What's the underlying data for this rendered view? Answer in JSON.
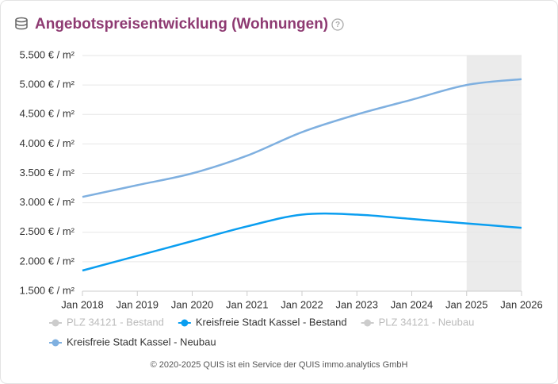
{
  "chart_data": {
    "type": "line",
    "title": "Angebotspreisentwicklung (Wohnungen)",
    "x": [
      "Jan 2018",
      "Jan 2019",
      "Jan 2020",
      "Jan 2021",
      "Jan 2022",
      "Jan 2023",
      "Jan 2024",
      "Jan 2025",
      "Jan 2026"
    ],
    "series": [
      {
        "name": "PLZ 34121 - Bestand",
        "color": "#cccccc",
        "visible": false,
        "values": [
          null,
          null,
          null,
          null,
          null,
          null,
          null,
          null,
          null
        ]
      },
      {
        "name": "Kreisfreie Stadt Kassel - Bestand",
        "color": "#0a9ef0",
        "visible": true,
        "values": [
          1850,
          2100,
          2350,
          2600,
          2800,
          2800,
          2725,
          2650,
          2575
        ]
      },
      {
        "name": "PLZ 34121 - Neubau",
        "color": "#cccccc",
        "visible": false,
        "values": [
          null,
          null,
          null,
          null,
          null,
          null,
          null,
          null,
          null
        ]
      },
      {
        "name": "Kreisfreie Stadt Kassel - Neubau",
        "color": "#7fb0e0",
        "visible": true,
        "values": [
          3100,
          3300,
          3500,
          3800,
          4200,
          4500,
          4750,
          5000,
          5100
        ]
      }
    ],
    "ylim": [
      1500,
      5500
    ],
    "yticks": [
      {
        "value": 1500,
        "label": "1.500 € / m²"
      },
      {
        "value": 2000,
        "label": "2.000 € / m²"
      },
      {
        "value": 2500,
        "label": "2.500 € / m²"
      },
      {
        "value": 3000,
        "label": "3.000 € / m²"
      },
      {
        "value": 3500,
        "label": "3.500 € / m²"
      },
      {
        "value": 4000,
        "label": "4.000 € / m²"
      },
      {
        "value": 4500,
        "label": "4.500 € / m²"
      },
      {
        "value": 5000,
        "label": "5.000 € / m²"
      },
      {
        "value": 5500,
        "label": "5.500 € / m²"
      }
    ],
    "grid": true,
    "shade": {
      "from": "Jan 2025",
      "to": "Jan 2026"
    },
    "footer": "© 2020-2025 QUIS ist ein Service der QUIS immo.analytics GmbH"
  }
}
